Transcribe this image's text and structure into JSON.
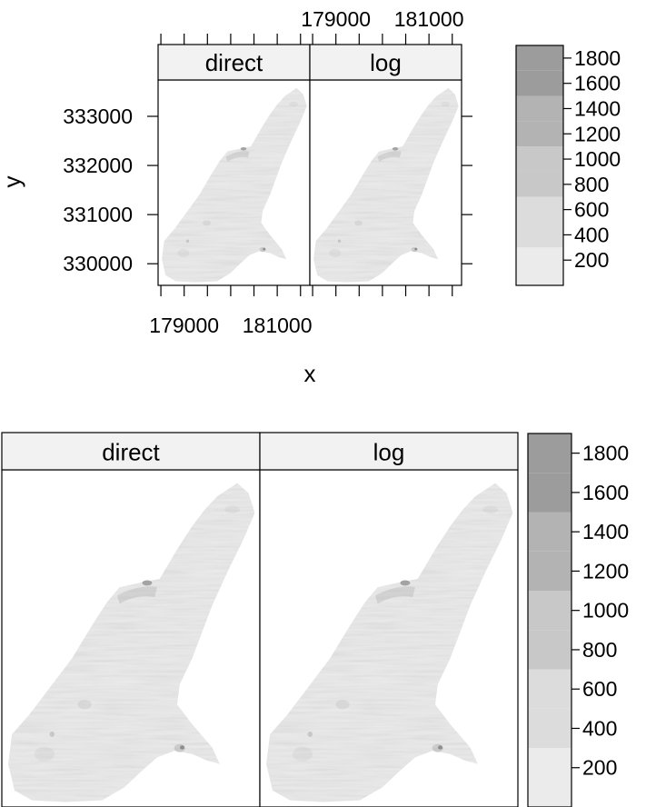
{
  "chart_data": [
    {
      "type": "heatmap",
      "panels": [
        {
          "name": "direct"
        },
        {
          "name": "log"
        }
      ],
      "xlabel": "x",
      "ylabel": "y",
      "x_ticks": [
        {
          "value": 178500,
          "label": ""
        },
        {
          "value": 179000,
          "label": "179000"
        },
        {
          "value": 179500,
          "label": ""
        },
        {
          "value": 180000,
          "label": ""
        },
        {
          "value": 180500,
          "label": ""
        },
        {
          "value": 181000,
          "label": "181000"
        },
        {
          "value": 181500,
          "label": ""
        }
      ],
      "y_ticks": [
        {
          "value": 330000,
          "label": "330000"
        },
        {
          "value": 331000,
          "label": "331000"
        },
        {
          "value": 332000,
          "label": "332000"
        },
        {
          "value": 333000,
          "label": "333000"
        }
      ],
      "xlim": [
        178440,
        181700
      ],
      "ylim": [
        329560,
        333740
      ],
      "colorkey": {
        "breaks": [
          0,
          300,
          500,
          700,
          900,
          1100,
          1300,
          1500,
          1700,
          1900
        ],
        "ticks": [
          200,
          400,
          600,
          800,
          1000,
          1200,
          1400,
          1600,
          1800
        ],
        "colors": [
          "#ebebeb",
          "#dcdcdc",
          "#dcdcdc",
          "#c8c8c8",
          "#c8c8c8",
          "#b3b3b3",
          "#b3b3b3",
          "#9c9c9c",
          "#9c9c9c"
        ]
      }
    },
    {
      "type": "heatmap",
      "panels": [
        {
          "name": "direct"
        },
        {
          "name": "log"
        }
      ],
      "xlim": [
        178440,
        181700
      ],
      "ylim": [
        329560,
        333740
      ],
      "colorkey": {
        "breaks": [
          0,
          300,
          500,
          700,
          900,
          1100,
          1300,
          1500,
          1700,
          1900
        ],
        "ticks": [
          200,
          400,
          600,
          800,
          1000,
          1200,
          1400,
          1600,
          1800
        ],
        "colors": [
          "#ebebeb",
          "#dcdcdc",
          "#dcdcdc",
          "#c8c8c8",
          "#c8c8c8",
          "#b3b3b3",
          "#b3b3b3",
          "#9c9c9c",
          "#9c9c9c"
        ]
      }
    }
  ]
}
